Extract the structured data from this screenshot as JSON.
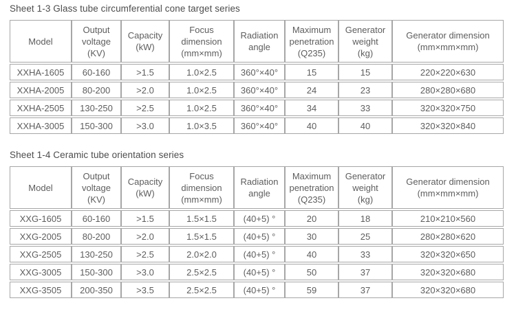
{
  "colors": {
    "background": "#ffffff",
    "table_border": "#a6a6a6",
    "cell_text": "#5d5d5d",
    "title_text": "#4c4c4c"
  },
  "tables": [
    {
      "title": "Sheet 1-3 Glass tube circumferential cone target series",
      "columns": [
        "Model",
        "Output\nvoltage\n(KV)",
        "Capacity\n(kW)",
        "Focus\ndimension\n(mm×mm)",
        "Radiation\nangle",
        "Maximum\npenetration\n(Q235)",
        "Generator\nweight\n(kg)",
        "Generator dimension\n(mm×mm×mm)"
      ],
      "rows": [
        [
          "XXHA-1605",
          "60-160",
          ">1.5",
          "1.0×2.5",
          "360°×40°",
          "15",
          "15",
          "220×220×630"
        ],
        [
          "XXHA-2005",
          "80-200",
          ">2.0",
          "1.0×2.5",
          "360°×40°",
          "24",
          "23",
          "280×280×680"
        ],
        [
          "XXHA-2505",
          "130-250",
          ">2.5",
          "1.0×2.5",
          "360°×40°",
          "34",
          "33",
          "320×320×750"
        ],
        [
          "XXHA-3005",
          "150-300",
          ">3.0",
          "1.0×3.5",
          "360°×40°",
          "40",
          "40",
          "320×320×840"
        ]
      ]
    },
    {
      "title": "Sheet 1-4 Ceramic tube orientation series",
      "columns": [
        "Model",
        "Output\nvoltage\n(KV)",
        "Capacity\n(kW)",
        "Focus\ndimension\n(mm×mm)",
        "Radiation\nangle",
        "Maximum\npenetration\n(Q235)",
        "Generator\nweight\n(kg)",
        "Generator dimension\n(mm×mm×mm)"
      ],
      "rows": [
        [
          "XXG-1605",
          "60-160",
          ">1.5",
          "1.5×1.5",
          "(40+5) °",
          "20",
          "18",
          "210×210×560"
        ],
        [
          "XXG-2005",
          "80-200",
          ">2.0",
          "1.5×1.5",
          "(40+5) °",
          "30",
          "25",
          "280×280×620"
        ],
        [
          "XXG-2505",
          "130-250",
          ">2.5",
          "2.0×2.0",
          "(40+5) °",
          "40",
          "33",
          "320×320×650"
        ],
        [
          "XXG-3005",
          "150-300",
          ">3.0",
          "2.5×2.5",
          "(40+5) °",
          "50",
          "37",
          "320×320×680"
        ],
        [
          "XXG-3505",
          "200-350",
          ">3.5",
          "2.5×2.5",
          "(40+5) °",
          "59",
          "37",
          "320×320×680"
        ]
      ]
    }
  ]
}
